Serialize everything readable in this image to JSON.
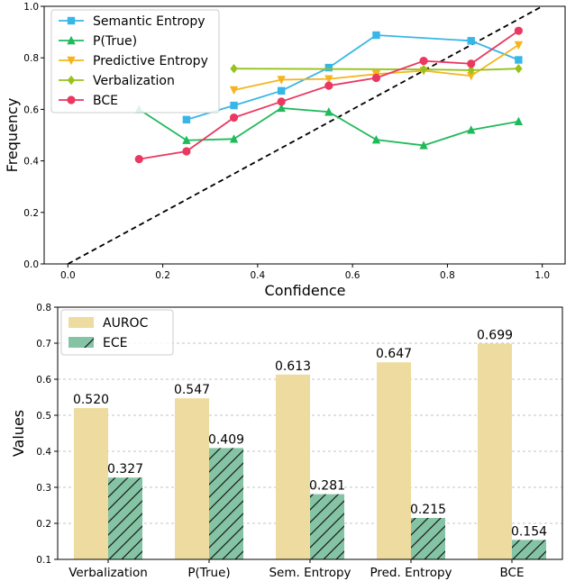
{
  "chart_data": [
    {
      "type": "line",
      "xlabel": "Confidence",
      "ylabel": "Frequency",
      "xlim": [
        -0.05,
        1.05
      ],
      "ylim": [
        0,
        1.0
      ],
      "xticks": [
        "0.0",
        "0.2",
        "0.4",
        "0.6",
        "0.8",
        "1.0"
      ],
      "yticks": [
        "0.0",
        "0.2",
        "0.4",
        "0.6",
        "0.8",
        "1.0"
      ],
      "grid": false,
      "legend_position": "top-left",
      "diagonal_reference": {
        "x": [
          0,
          1
        ],
        "y": [
          0,
          1
        ],
        "style": "dashed",
        "color": "#000000"
      },
      "series": [
        {
          "name": "Semantic Entropy",
          "color": "#38b6e8",
          "marker": "square",
          "x": [
            0.25,
            0.35,
            0.45,
            0.55,
            0.65,
            0.85,
            0.95
          ],
          "y": [
            0.56,
            0.615,
            0.672,
            0.762,
            0.888,
            0.866,
            0.792
          ]
        },
        {
          "name": "P(True)",
          "color": "#1fba5a",
          "marker": "triangle-up",
          "x": [
            0.15,
            0.25,
            0.35,
            0.45,
            0.55,
            0.65,
            0.75,
            0.85,
            0.95
          ],
          "y": [
            0.6,
            0.48,
            0.485,
            0.605,
            0.59,
            0.482,
            0.46,
            0.52,
            0.553
          ]
        },
        {
          "name": "Predictive Entropy",
          "color": "#f6b41c",
          "marker": "triangle-down",
          "x": [
            0.35,
            0.45,
            0.55,
            0.65,
            0.75,
            0.85,
            0.95
          ],
          "y": [
            0.675,
            0.715,
            0.718,
            0.737,
            0.75,
            0.73,
            0.85
          ]
        },
        {
          "name": "Verbalization",
          "color": "#97c21d",
          "marker": "diamond",
          "x": [
            0.35,
            0.75,
            0.85,
            0.95
          ],
          "y": [
            0.758,
            0.755,
            0.752,
            0.758
          ]
        },
        {
          "name": "BCE",
          "color": "#ea3860",
          "marker": "circle",
          "x": [
            0.15,
            0.25,
            0.35,
            0.45,
            0.55,
            0.65,
            0.75,
            0.85,
            0.95
          ],
          "y": [
            0.407,
            0.437,
            0.568,
            0.63,
            0.692,
            0.722,
            0.788,
            0.777,
            0.905
          ]
        }
      ]
    },
    {
      "type": "bar",
      "categories": [
        "Verbalization",
        "P(True)",
        "Sem. Entropy",
        "Pred. Entropy",
        "BCE"
      ],
      "ylabel": "Values",
      "ylim": [
        0.1,
        0.8
      ],
      "yticks": [
        "0.1",
        "0.2",
        "0.3",
        "0.4",
        "0.5",
        "0.6",
        "0.7",
        "0.8"
      ],
      "grid": true,
      "legend_position": "top-left",
      "series": [
        {
          "name": "AUROC",
          "color": "#eedb9f",
          "hatch": false,
          "values": [
            0.52,
            0.547,
            0.613,
            0.647,
            0.699
          ],
          "labels": [
            "0.520",
            "0.547",
            "0.613",
            "0.647",
            "0.699"
          ]
        },
        {
          "name": "ECE",
          "color": "#84c4a4",
          "hatch": true,
          "values": [
            0.327,
            0.409,
            0.281,
            0.215,
            0.154
          ],
          "labels": [
            "0.327",
            "0.409",
            "0.281",
            "0.215",
            "0.154"
          ]
        }
      ]
    }
  ]
}
